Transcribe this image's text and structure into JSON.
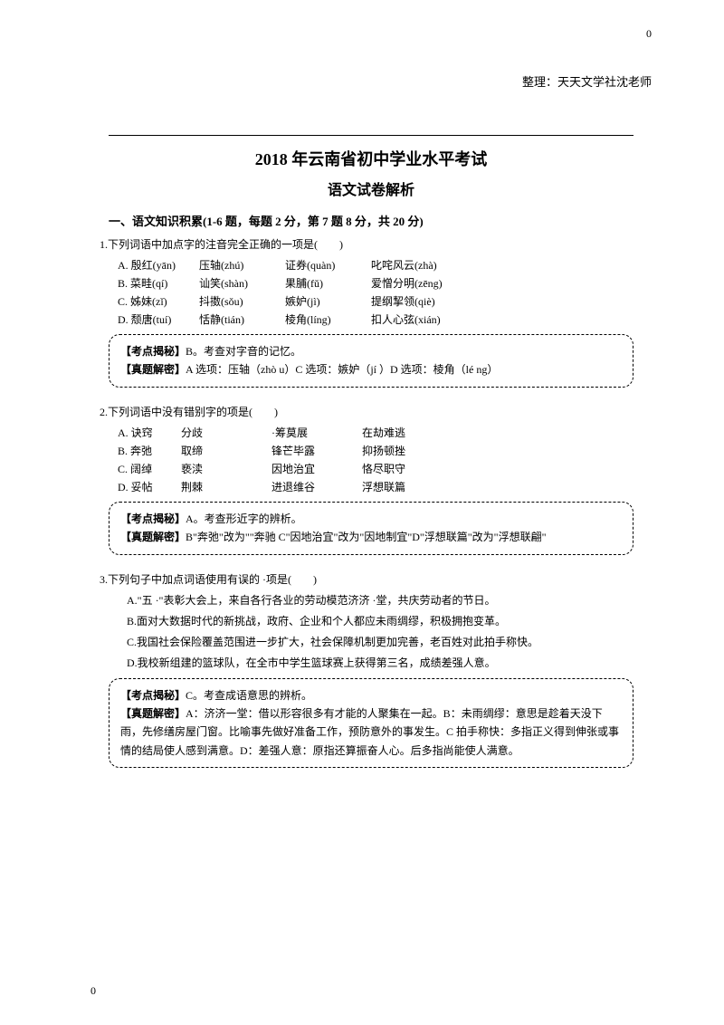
{
  "page_number_top": "0",
  "page_number_bottom": "0",
  "header_note": "整理：天天文学社沈老师",
  "main_title": "2018 年云南省初中学业水平考试",
  "sub_title": "语文试卷解析",
  "section1_title": "一、语文知识积累(1-6 题，每题 2 分，第 7 题 8 分，共 20 分)",
  "q1": {
    "stem": "1.下列词语中加点字的注音完全正确的一项是(　　)",
    "rows": [
      {
        "label": "A. 殷红(yān)",
        "c1": "压轴(zhú)",
        "c2": "证券(quàn)",
        "c3": "叱咤风云(zhà)"
      },
      {
        "label": "B. 菜畦(qí)",
        "c1": "讪笑(shàn)",
        "c2": "果脯(fǔ)",
        "c3": "爱憎分明(zēng)"
      },
      {
        "label": "C. 姊妹(zǐ)",
        "c1": "抖擞(sǒu)",
        "c2": "嫉妒(jì)",
        "c3": "提纲挈领(qiè)"
      },
      {
        "label": "D. 颓唐(tuí)",
        "c1": "恬静(tián)",
        "c2": "棱角(líng)",
        "c3": "扣人心弦(xián)"
      }
    ],
    "analysis_label1": "【考点揭秘】",
    "analysis_text1": "B。考查对字音的记忆。",
    "analysis_label2": "【真题解密】",
    "analysis_text2": "A 选项：压轴（zhò u）C 选项：嫉妒（jí ）D 选项：棱角（lé ng）"
  },
  "q2": {
    "stem": "2.下列词语中没有错别字的项是(　　)",
    "rows": [
      {
        "label": "A. 诀窍",
        "c1": "分歧",
        "c2": "·筹莫展",
        "c3": "在劫难逃"
      },
      {
        "label": "B. 奔弛",
        "c1": "取缔",
        "c2": "锋芒毕露",
        "c3": "抑扬顿挫"
      },
      {
        "label": "C. 阔绰",
        "c1": "亵渎",
        "c2": "因地治宜",
        "c3": "恪尽职守"
      },
      {
        "label": "D. 妥帖",
        "c1": "荆棘",
        "c2": "进退维谷",
        "c3": "浮想联篇"
      }
    ],
    "analysis_label1": "【考点揭秘】",
    "analysis_text1": "A。考查形近字的辨析。",
    "analysis_label2": "【真题解密】",
    "analysis_text2": "B\"奔弛\"改为\"\"奔驰 C\"因地治宜\"改为\"因地制宜\"D\"浮想联篇\"改为\"浮想联翩\""
  },
  "q3": {
    "stem": "3.下列句子中加点词语使用有误的 ·项是(　　)",
    "options": [
      "A.\"五 ·\"表彰大会上，来自各行各业的劳动模范济济 ·堂，共庆劳动者的节日。",
      "B.面对大数据时代的新挑战，政府、企业和个人都应未雨绸缪，积极拥抱变革。",
      "C.我国社会保险覆盖范围进一步扩大，社会保障机制更加完善，老百姓对此拍手称快。",
      "D.我校新组建的篮球队，在全市中学生篮球赛上获得第三名，成绩差强人意。"
    ],
    "analysis_label1": "【考点揭秘】",
    "analysis_text1": "C。考查成语意思的辨析。",
    "analysis_label2": "【真题解密】",
    "analysis_text2": "A：济济一堂：借以形容很多有才能的人聚集在一起。B：未雨绸缪：意思是趁着天没下雨，先修缮房屋门窗。比喻事先做好准备工作，预防意外的事发生。C 拍手称快：多指正义得到伸张或事情的结局使人感到满意。D：差强人意：原指还算振奋人心。后多指尚能使人满意。"
  }
}
